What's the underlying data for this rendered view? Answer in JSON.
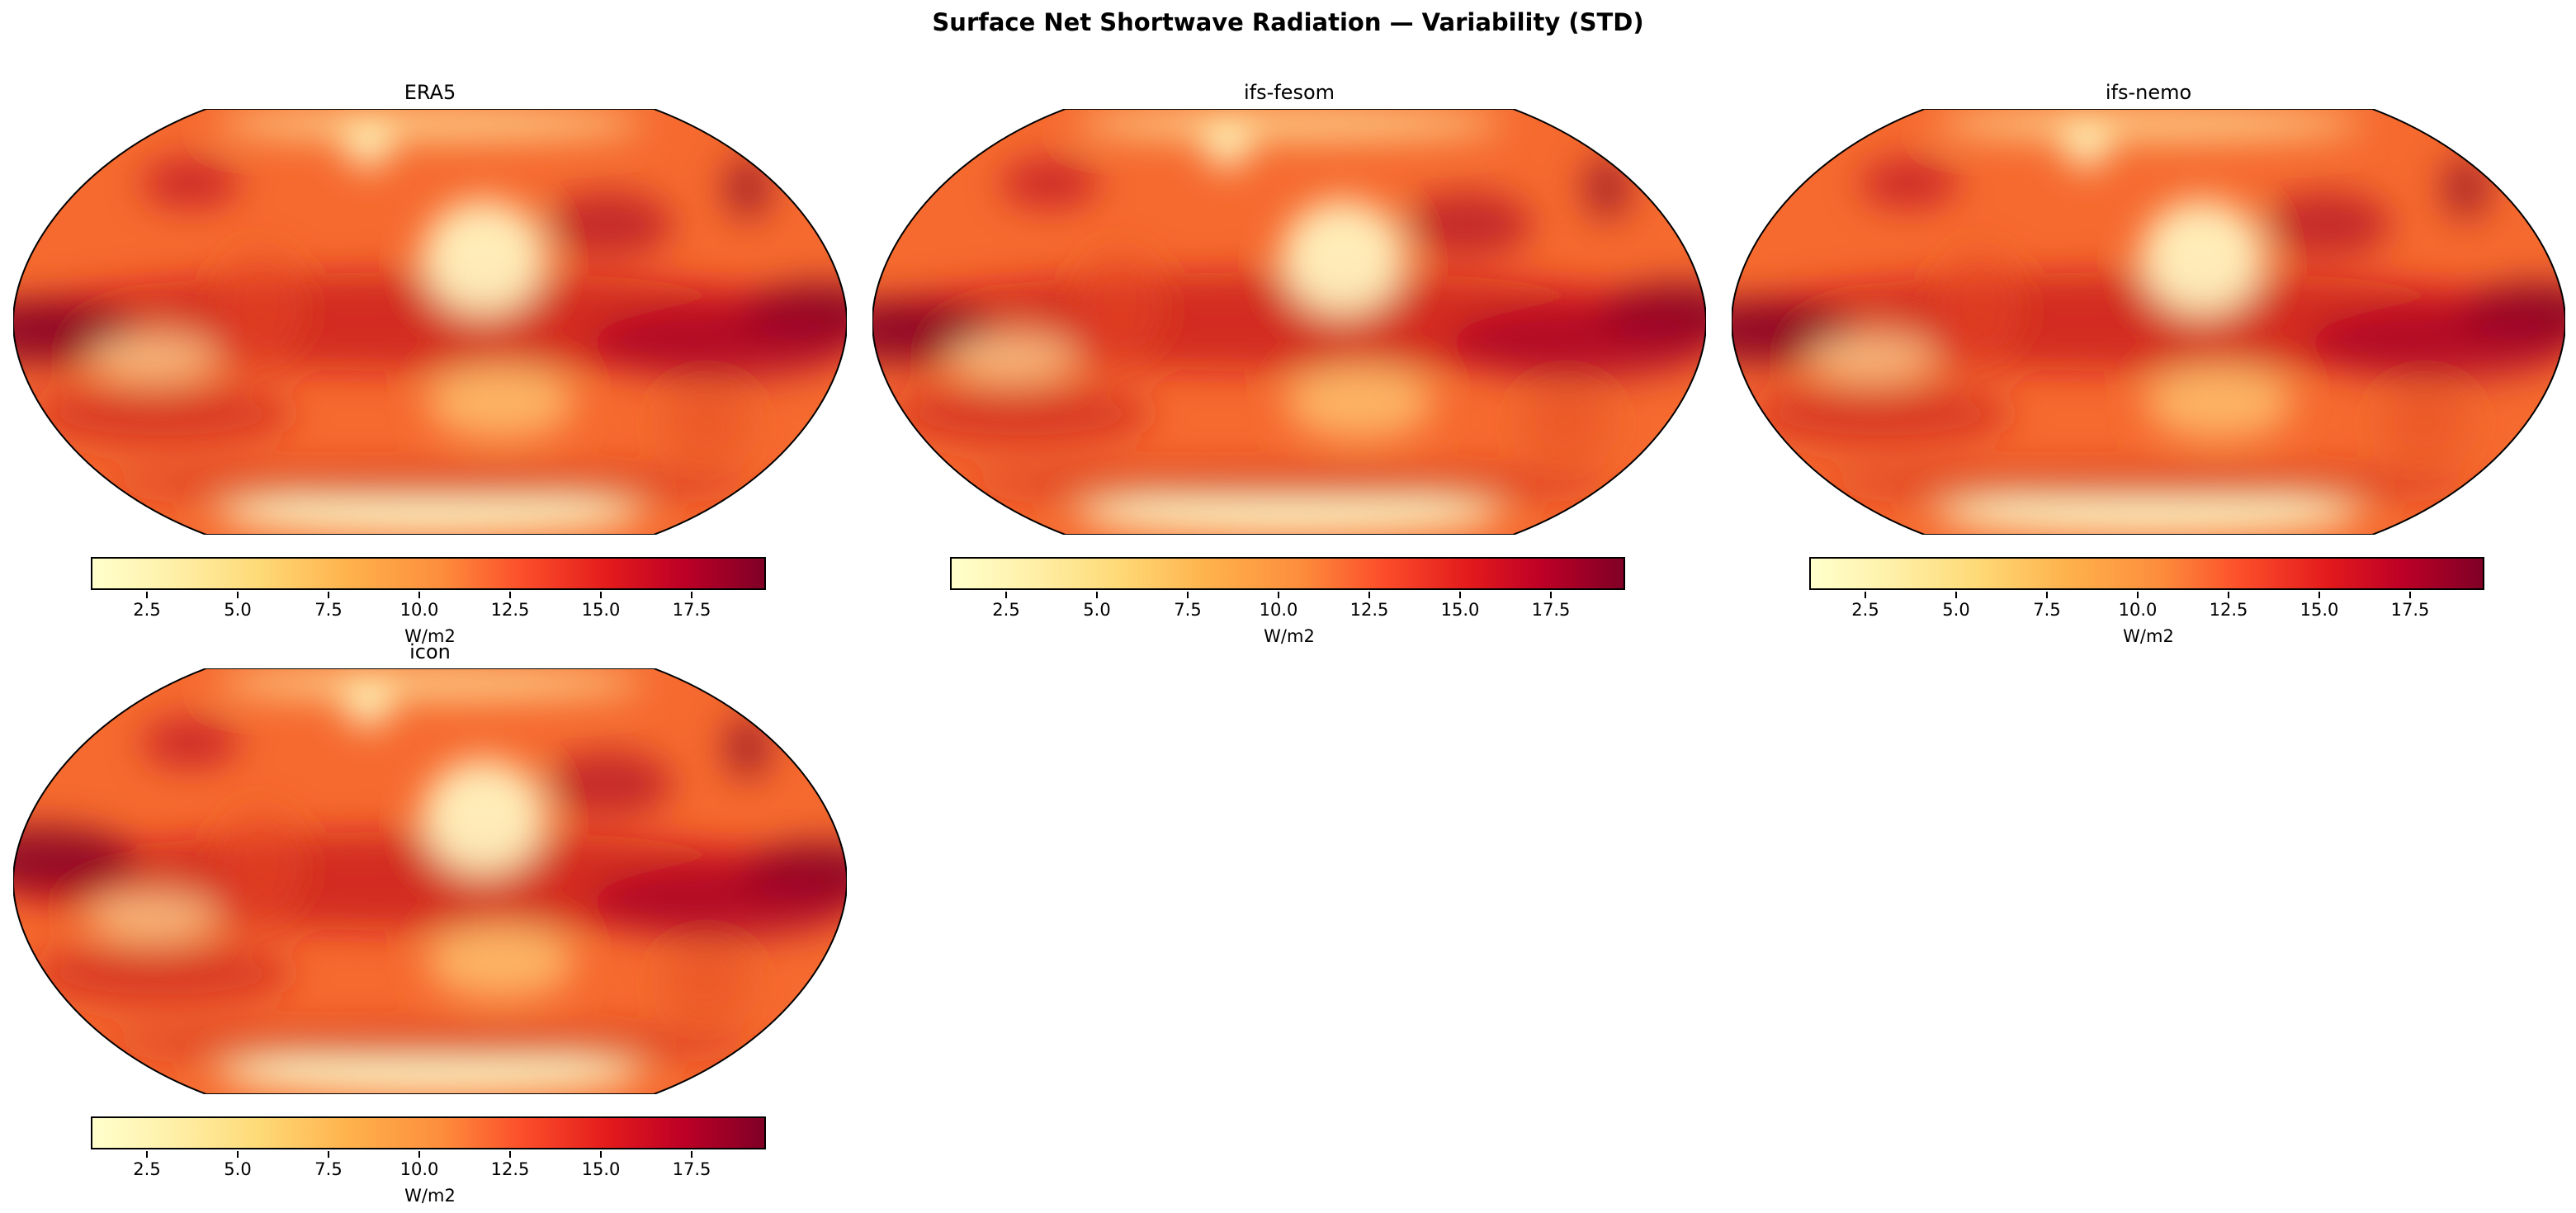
{
  "title": "Surface Net Shortwave Radiation — Variability (STD)",
  "panels": [
    {
      "title": "ERA5"
    },
    {
      "title": "ifs-fesom"
    },
    {
      "title": "ifs-nemo"
    },
    {
      "title": "icon"
    }
  ],
  "colorbar": {
    "label": "W/m2",
    "colormap": "YlOrRd",
    "vmin": 1.0,
    "vmax": 19.5,
    "ticks": [
      "2.5",
      "5.0",
      "7.5",
      "10.0",
      "12.5",
      "15.0",
      "17.5"
    ]
  },
  "projection": "Robinson",
  "colors": {
    "low": "#ffffcc",
    "mid": "#fd8d3c",
    "high": "#800026"
  }
}
